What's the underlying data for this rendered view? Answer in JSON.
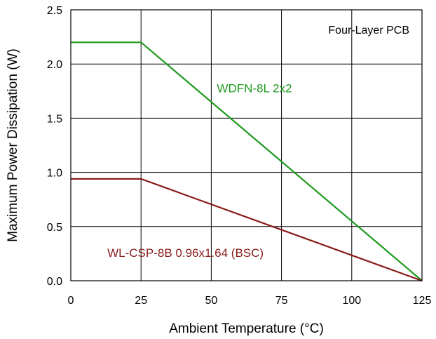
{
  "chart_data": {
    "type": "line",
    "xlabel": "Ambient Temperature (°C)",
    "ylabel": "Maximum Power Dissipation (W)",
    "xlim": [
      0,
      125
    ],
    "ylim": [
      0,
      2.5
    ],
    "xticks": [
      0,
      25,
      50,
      75,
      100,
      125
    ],
    "xtick_labels": [
      "0",
      "25",
      "50",
      "75",
      "100",
      "125"
    ],
    "yticks": [
      0,
      0.5,
      1.0,
      1.5,
      2.0,
      2.5
    ],
    "ytick_labels": [
      "0.0",
      "0.5",
      "1.0",
      "1.5",
      "2.0",
      "2.5"
    ],
    "grid": true,
    "annotation": "Four-Layer PCB",
    "series": [
      {
        "name": "WDFN-8L 2x2",
        "color": "#1e9a1e",
        "x": [
          0,
          25,
          125
        ],
        "y": [
          2.2,
          2.2,
          0
        ]
      },
      {
        "name": "WL-CSP-8B 0.96x1.64 (BSC)",
        "color": "#8b1a1a",
        "x": [
          0,
          25,
          125
        ],
        "y": [
          0.94,
          0.94,
          0
        ]
      }
    ]
  }
}
